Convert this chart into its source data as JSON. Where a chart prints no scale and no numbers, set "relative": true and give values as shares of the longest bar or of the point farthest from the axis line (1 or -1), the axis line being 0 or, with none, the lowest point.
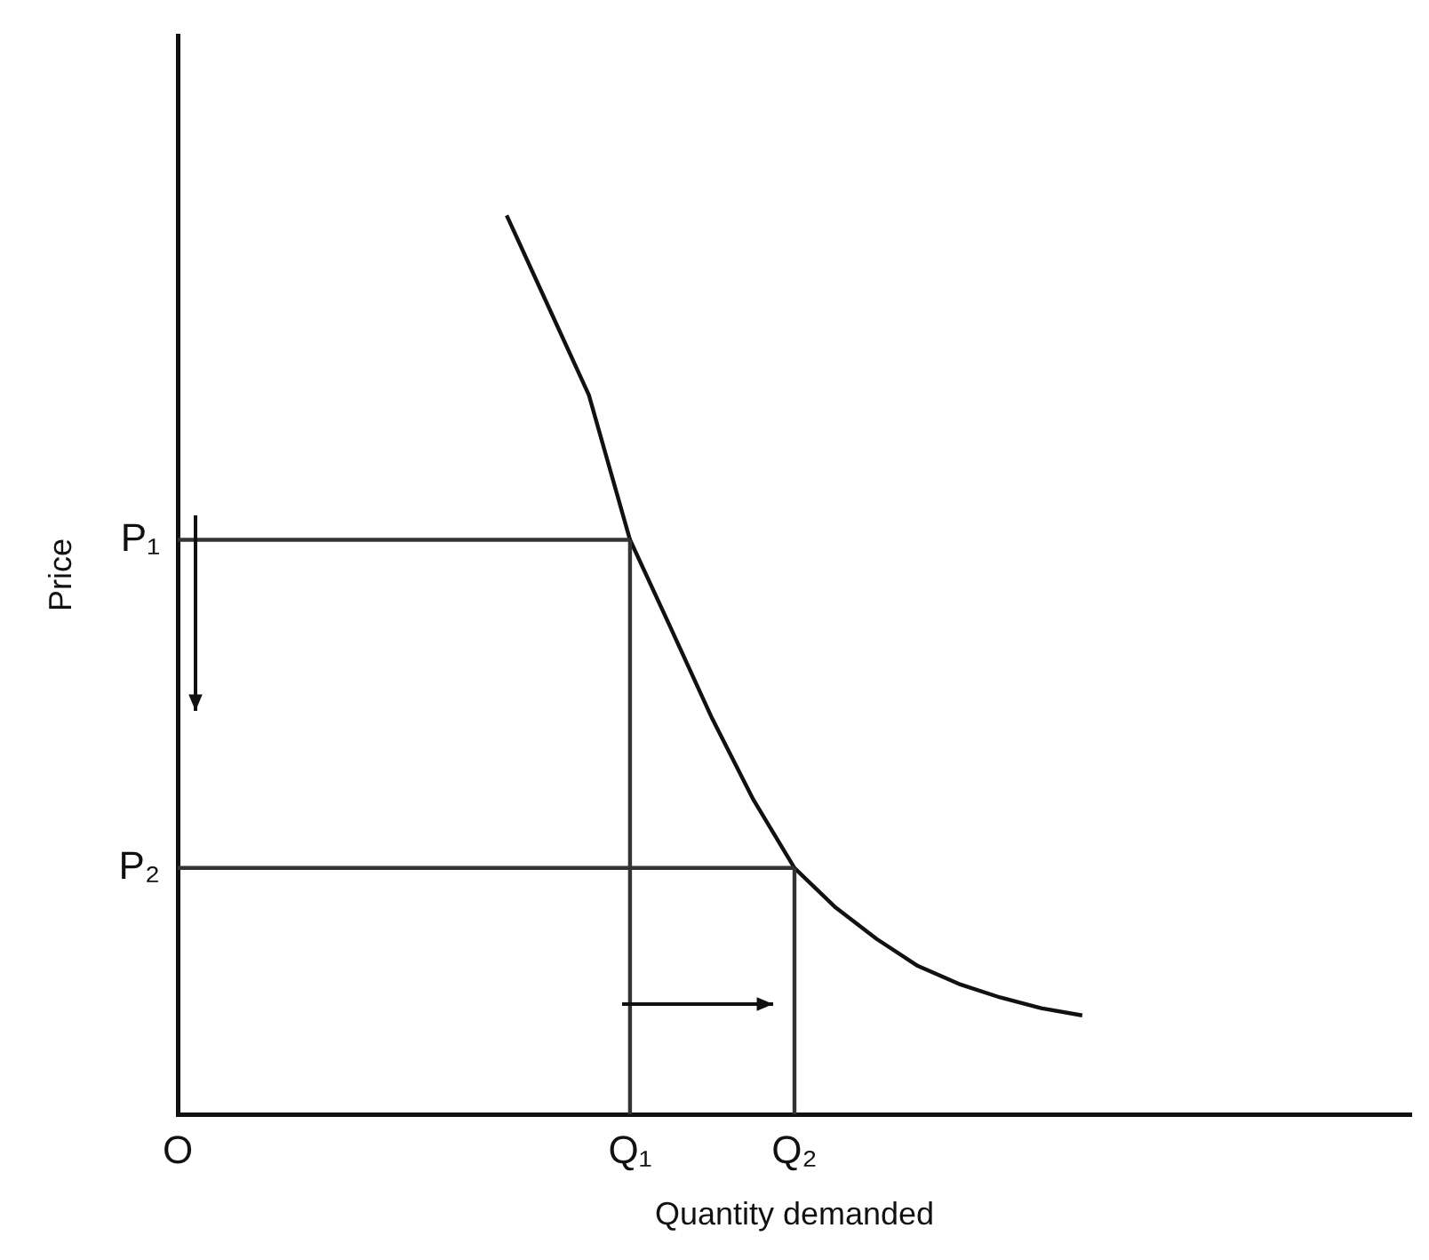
{
  "chart_data": {
    "type": "line",
    "xlabel": "Quantity demanded",
    "ylabel": "Price",
    "relative": true,
    "categories": [
      "O",
      null,
      null,
      null,
      null,
      null,
      null,
      null,
      null,
      null,
      null,
      "Q₁",
      null,
      null,
      null,
      "Q₂",
      null,
      null,
      null,
      null,
      null,
      null,
      null,
      null,
      null,
      null,
      null,
      null,
      null,
      null,
      null
    ],
    "grid": false,
    "legend": false,
    "marker": "none",
    "line_style": "solid",
    "series": [
      {
        "color": "#111111",
        "values": [
          null,
          null,
          null,
          null,
          null,
          null,
          null,
          null,
          1,
          0.9,
          0.8,
          0.639,
          0.54,
          0.44,
          0.35,
          0.274,
          0.23,
          0.195,
          0.165,
          0.145,
          0.13,
          0.118,
          0.11,
          null,
          null,
          null,
          null,
          null,
          null,
          null,
          null
        ]
      }
    ],
    "ref_lines": [
      {
        "axis": "x",
        "value": "Q₁",
        "color": "#333333"
      },
      {
        "axis": "x",
        "value": "Q₂",
        "color": "#333333"
      },
      {
        "axis": "y",
        "value": 0.639,
        "label": "P₁",
        "color": "#333333"
      },
      {
        "axis": "y",
        "value": 0.274,
        "label": "P₂",
        "color": "#333333"
      }
    ]
  }
}
